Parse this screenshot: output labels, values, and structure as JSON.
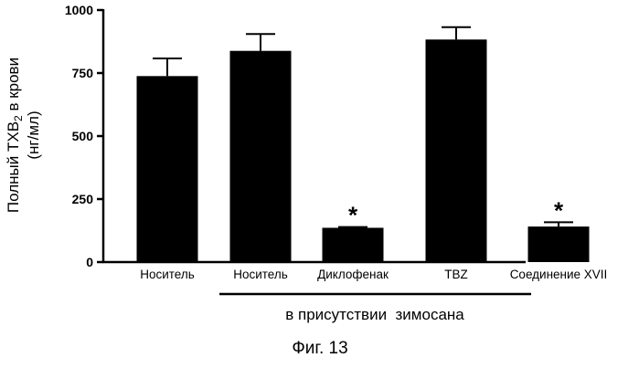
{
  "chart_data": {
    "type": "bar",
    "categories": [
      "Носитель",
      "Носитель",
      "Диклофенак",
      "TBZ",
      "Соединение XVII"
    ],
    "values": [
      738,
      838,
      136,
      883,
      141
    ],
    "error_upper": [
      808,
      905,
      139,
      932,
      158
    ],
    "significance": [
      "",
      "",
      "*",
      "",
      "*"
    ],
    "ylabel": {
      "main": "Полный TXB",
      "sub": "2",
      "rest": " в крови",
      "units": "(нг/мл)"
    },
    "yticks": [
      "0",
      "250",
      "500",
      "750",
      "1000"
    ],
    "ylim": [
      0,
      1000
    ],
    "group_label": "в присутствии  зимосана",
    "caption": "Фиг. 13",
    "bar_color": "#000000"
  }
}
